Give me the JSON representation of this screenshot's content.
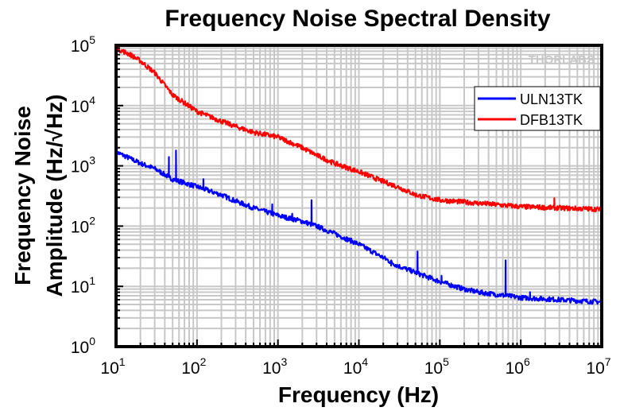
{
  "chart_data": {
    "type": "line",
    "title": "Frequency Noise Spectral Density",
    "xlabel": "Frequency (Hz)",
    "ylabel_line1": "Frequency Noise",
    "ylabel_line2": "Amplitude (Hz/√Hz)",
    "xscale": "log",
    "yscale": "log",
    "xlim": [
      10,
      10000000
    ],
    "ylim": [
      1,
      100000
    ],
    "x_ticks": [
      {
        "base": "10",
        "exp": "1"
      },
      {
        "base": "10",
        "exp": "2"
      },
      {
        "base": "10",
        "exp": "3"
      },
      {
        "base": "10",
        "exp": "4"
      },
      {
        "base": "10",
        "exp": "5"
      },
      {
        "base": "10",
        "exp": "6"
      },
      {
        "base": "10",
        "exp": "7"
      }
    ],
    "y_ticks": [
      {
        "base": "10",
        "exp": "0"
      },
      {
        "base": "10",
        "exp": "1"
      },
      {
        "base": "10",
        "exp": "2"
      },
      {
        "base": "10",
        "exp": "3"
      },
      {
        "base": "10",
        "exp": "4"
      },
      {
        "base": "10",
        "exp": "5"
      }
    ],
    "grid": true,
    "legend_position": "top-right",
    "watermark": "THORLABS",
    "series": [
      {
        "name": "ULN13TK",
        "color": "#0000ff",
        "x": [
          10,
          20,
          30,
          50,
          100,
          200,
          300,
          500,
          1000,
          2000,
          3000,
          5000,
          10000,
          20000,
          30000,
          50000,
          100000,
          200000,
          300000,
          1000000,
          3000000,
          10000000
        ],
        "y": [
          1700,
          1100,
          900,
          600,
          450,
          330,
          260,
          200,
          150,
          120,
          100,
          75,
          50,
          30,
          22,
          17,
          12,
          9,
          8,
          6.5,
          6,
          5.5
        ],
        "peaks": [
          [
            25,
            1000
          ],
          [
            45,
            1400
          ],
          [
            55,
            1800
          ],
          [
            120,
            600
          ],
          [
            850,
            230
          ],
          [
            1500,
            160
          ],
          [
            2600,
            270
          ],
          [
            25000,
            22
          ],
          [
            53000,
            38
          ],
          [
            105000,
            15
          ],
          [
            650000,
            27
          ],
          [
            1300000,
            8
          ]
        ]
      },
      {
        "name": "DFB13TK",
        "color": "#ff0000",
        "x": [
          10,
          15,
          20,
          30,
          50,
          100,
          200,
          300,
          500,
          1000,
          2000,
          3000,
          5000,
          10000,
          20000,
          30000,
          50000,
          100000,
          300000,
          1000000,
          3000000,
          10000000
        ],
        "y": [
          90000,
          70000,
          55000,
          35000,
          15000,
          8000,
          5500,
          4500,
          3600,
          3000,
          2000,
          1500,
          1100,
          800,
          550,
          450,
          330,
          270,
          240,
          210,
          200,
          190
        ],
        "peaks": [
          [
            2600000,
            290
          ]
        ]
      }
    ]
  }
}
